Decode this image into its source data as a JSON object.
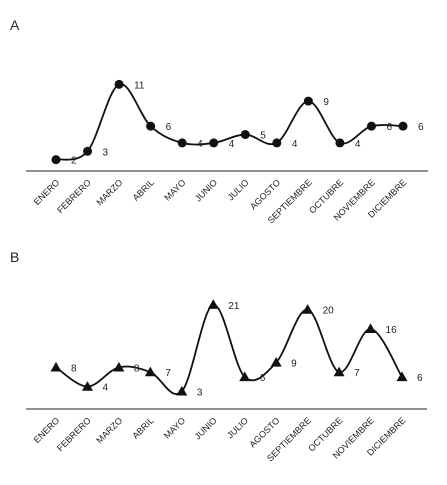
{
  "chart_data": [
    {
      "type": "line",
      "panel_label": "A",
      "marker": "circle",
      "smooth": true,
      "categories": [
        "ENERO",
        "FEBRERO",
        "MARZO",
        "ABRIL",
        "MAYO",
        "JUNIO",
        "JULIO",
        "AGOSTO",
        "SEPTIEMBRE",
        "OCTUBRE",
        "NOVIEMBRE",
        "DICIEMBRE"
      ],
      "values": [
        2,
        3,
        11,
        6,
        4,
        4,
        5,
        4,
        9,
        4,
        6,
        6
      ],
      "data_labels": [
        "2",
        "3",
        "11",
        "6",
        "4",
        "4",
        "5",
        "4",
        "9",
        "4",
        "6",
        "6"
      ],
      "y_range": [
        1,
        12
      ],
      "grid": false,
      "legend": "none"
    },
    {
      "type": "line",
      "panel_label": "B",
      "marker": "triangle",
      "smooth": true,
      "categories": [
        "ENERO",
        "FEBRERO",
        "MARZO",
        "ABRIL",
        "MAYO",
        "JUNIO",
        "JULIO",
        "AGOSTO",
        "SEPTIEMBRE",
        "OCTUBRE",
        "NOVIEMBRE",
        "DICIEMBRE"
      ],
      "values": [
        8,
        4,
        8,
        7,
        3,
        21,
        6,
        9,
        20,
        7,
        16,
        6
      ],
      "data_labels": [
        "8",
        "4",
        "8",
        "7",
        "3",
        "21",
        "6",
        "9",
        "20",
        "7",
        "16",
        "6"
      ],
      "y_range": [
        1,
        22
      ],
      "grid": false,
      "legend": "none"
    }
  ]
}
